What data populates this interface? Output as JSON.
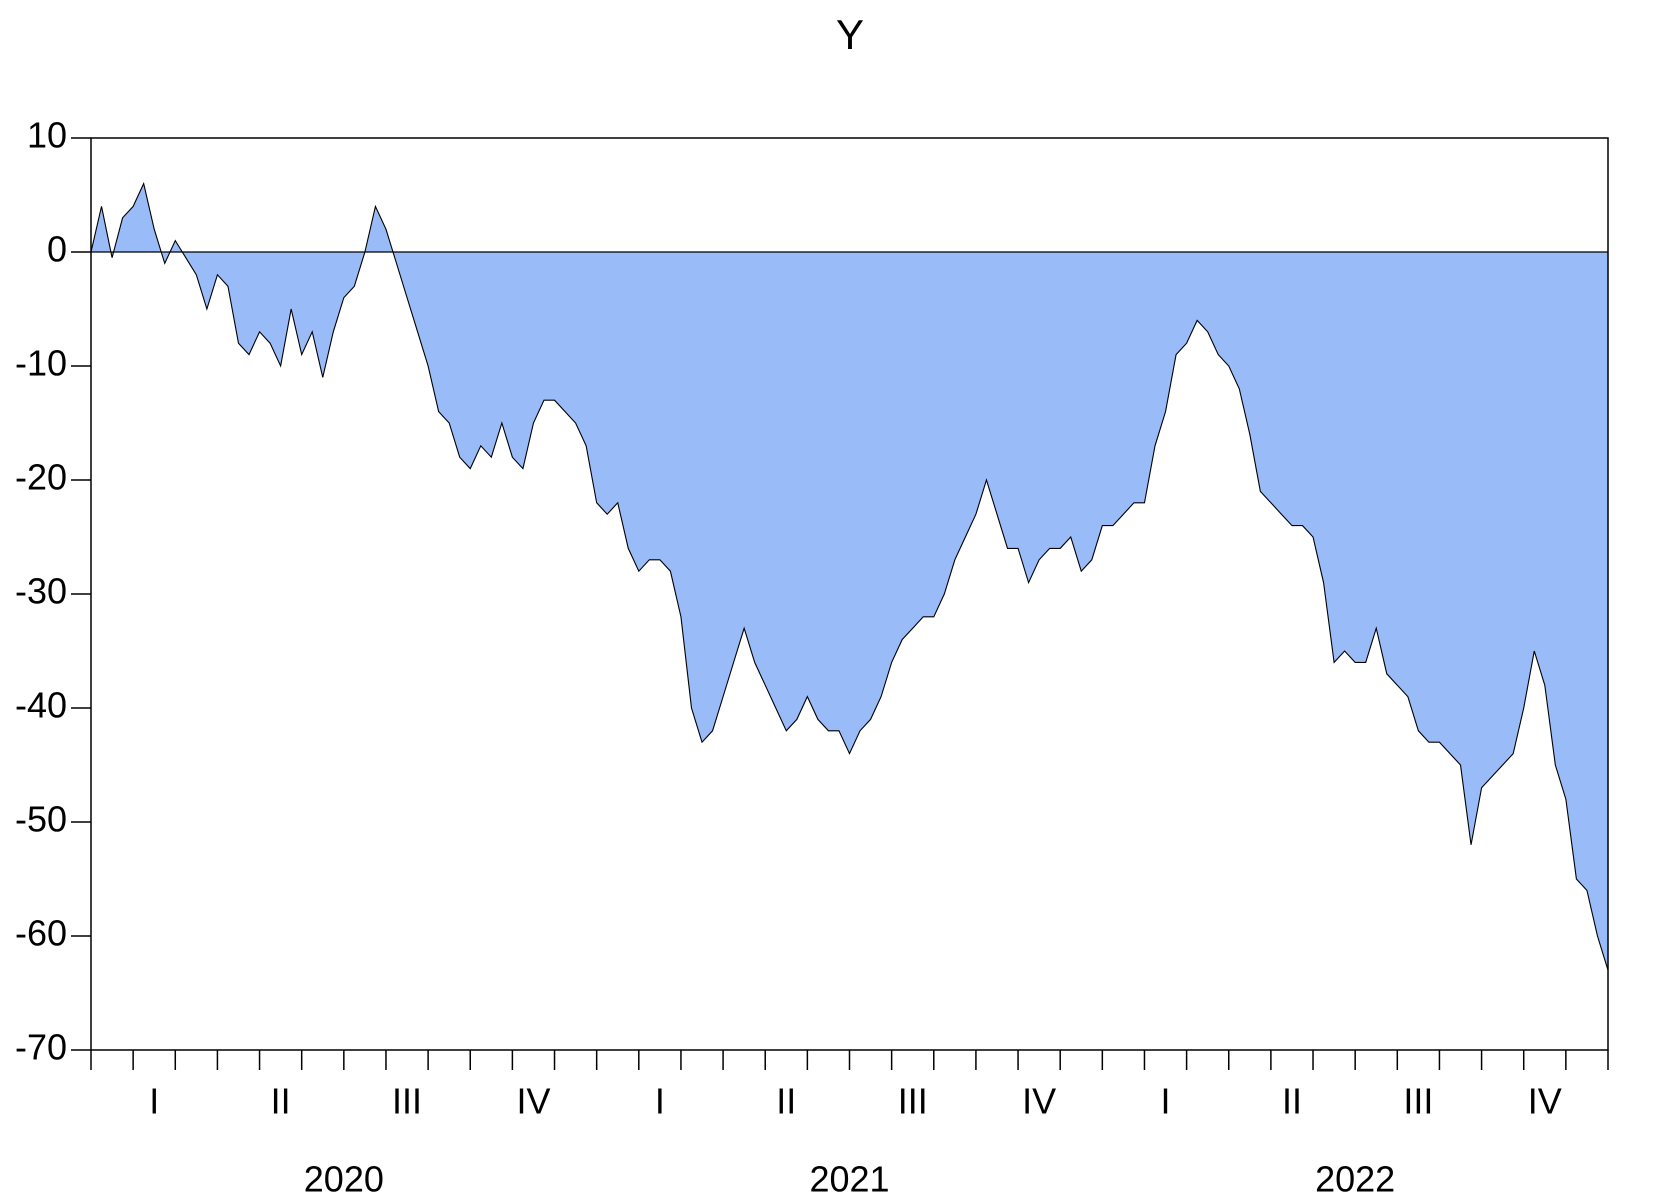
{
  "chart_data": {
    "type": "area",
    "title": "Y",
    "quarters": [
      "I",
      "II",
      "III",
      "IV",
      "I",
      "II",
      "III",
      "IV",
      "I",
      "II",
      "III",
      "IV"
    ],
    "years": [
      "2020",
      "2021",
      "2022"
    ],
    "values": [
      0,
      4,
      -0.5,
      3,
      4,
      6,
      2,
      -1,
      1,
      -0.5,
      -2,
      -5,
      -2,
      -3,
      -8,
      -9,
      -7,
      -8,
      -10,
      -5,
      -9,
      -7,
      -11,
      -7,
      -4,
      -3,
      0,
      4,
      2,
      -1,
      -4,
      -7,
      -10,
      -14,
      -15,
      -18,
      -19,
      -17,
      -18,
      -15,
      -18,
      -19,
      -15,
      -13,
      -13,
      -14,
      -15,
      -17,
      -22,
      -23,
      -22,
      -26,
      -28,
      -27,
      -27,
      -28,
      -32,
      -40,
      -43,
      -42,
      -39,
      -36,
      -33,
      -36,
      -38,
      -40,
      -42,
      -41,
      -39,
      -41,
      -42,
      -42,
      -44,
      -42,
      -41,
      -39,
      -36,
      -34,
      -33,
      -32,
      -32,
      -30,
      -27,
      -25,
      -23,
      -20,
      -23,
      -26,
      -26,
      -29,
      -27,
      -26,
      -26,
      -25,
      -28,
      -27,
      -24,
      -24,
      -23,
      -22,
      -22,
      -17,
      -14,
      -9,
      -8,
      -6,
      -7,
      -9,
      -10,
      -12,
      -16,
      -21,
      -22,
      -23,
      -24,
      -24,
      -25,
      -29,
      -36,
      -35,
      -36,
      -36,
      -33,
      -37,
      -38,
      -39,
      -42,
      -43,
      -43,
      -44,
      -45,
      -52,
      -47,
      -46,
      -45,
      -44,
      -40,
      -35,
      -38,
      -45,
      -48,
      -55,
      -56,
      -60,
      -63
    ],
    "fill_color": "#99bbf8",
    "line_color": "#000000",
    "ylim": [
      -70,
      10
    ],
    "yticks": [
      -70,
      -60,
      -50,
      -40,
      -30,
      -20,
      -10,
      0,
      10
    ],
    "zero_line": true
  }
}
